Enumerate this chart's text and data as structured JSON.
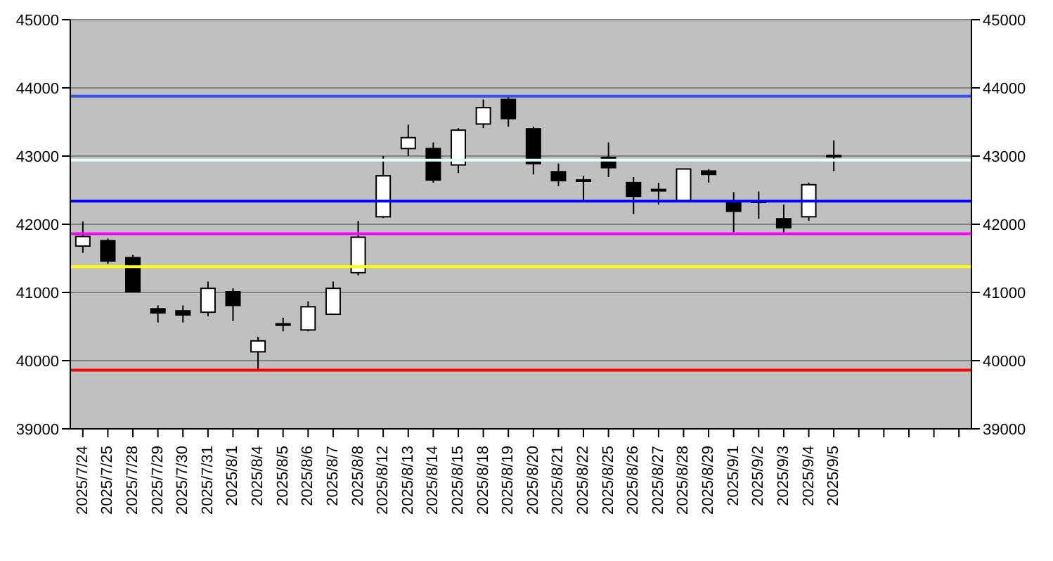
{
  "chart_data": {
    "type": "candlestick",
    "categories": [
      "2025/7/24",
      "2025/7/25",
      "2025/7/28",
      "2025/7/29",
      "2025/7/30",
      "2025/7/31",
      "2025/8/1",
      "2025/8/4",
      "2025/8/5",
      "2025/8/6",
      "2025/8/7",
      "2025/8/8",
      "2025/8/12",
      "2025/8/13",
      "2025/8/14",
      "2025/8/15",
      "2025/8/18",
      "2025/8/19",
      "2025/8/20",
      "2025/8/21",
      "2025/8/22",
      "2025/8/25",
      "2025/8/26",
      "2025/8/27",
      "2025/8/28",
      "2025/8/29",
      "2025/9/1",
      "2025/9/2",
      "2025/9/3",
      "2025/9/4",
      "2025/9/5",
      null,
      null,
      null,
      null,
      null
    ],
    "ohlc": [
      [
        41680,
        42040,
        41580,
        41820
      ],
      [
        41760,
        41790,
        41420,
        41460
      ],
      [
        41510,
        41550,
        41010,
        41010
      ],
      [
        40760,
        40810,
        40560,
        40700
      ],
      [
        40730,
        40810,
        40560,
        40670
      ],
      [
        40710,
        41160,
        40650,
        41060
      ],
      [
        41010,
        41060,
        40580,
        40810
      ],
      [
        40130,
        40350,
        39880,
        40290
      ],
      [
        40520,
        40630,
        40430,
        40540
      ],
      [
        40450,
        40870,
        40430,
        40790
      ],
      [
        40680,
        41160,
        40680,
        41060
      ],
      [
        41290,
        42050,
        41250,
        41810
      ],
      [
        42110,
        43000,
        42090,
        42710
      ],
      [
        43110,
        43460,
        43000,
        43270
      ],
      [
        43110,
        43200,
        42610,
        42650
      ],
      [
        42870,
        43410,
        42750,
        43380
      ],
      [
        43470,
        43830,
        43410,
        43710
      ],
      [
        43830,
        43880,
        43430,
        43550
      ],
      [
        43400,
        43430,
        42730,
        42890
      ],
      [
        42770,
        42890,
        42560,
        42640
      ],
      [
        42630,
        42710,
        42360,
        42650
      ],
      [
        42980,
        43200,
        42690,
        42830
      ],
      [
        42610,
        42690,
        42150,
        42410
      ],
      [
        42490,
        42610,
        42290,
        42510
      ],
      [
        42330,
        42810,
        42330,
        42810
      ],
      [
        42780,
        42810,
        42610,
        42730
      ],
      [
        42310,
        42470,
        41880,
        42190
      ],
      [
        42320,
        42480,
        42080,
        42340
      ],
      [
        42080,
        42290,
        41880,
        41950
      ],
      [
        42110,
        42610,
        42050,
        42580
      ],
      [
        42990,
        43230,
        42780,
        43010
      ],
      null,
      null,
      null,
      null,
      null
    ],
    "ylim": [
      39000,
      45000
    ],
    "yticks": [
      39000,
      40000,
      41000,
      42000,
      43000,
      44000,
      45000
    ],
    "y2lim": [
      39000,
      45000
    ],
    "y2ticks": [
      39000,
      40000,
      41000,
      42000,
      43000,
      44000,
      45000
    ],
    "grid": "y",
    "legend": false,
    "ref_lines": [
      {
        "axis": "y",
        "value": 43880,
        "color": "#3050f0"
      },
      {
        "axis": "y",
        "value": 42940,
        "color": "#e0ffff"
      },
      {
        "axis": "y",
        "value": 42340,
        "color": "#0000ff"
      },
      {
        "axis": "y",
        "value": 41860,
        "color": "#ff00ff"
      },
      {
        "axis": "y",
        "value": 41380,
        "color": "#ffff00"
      },
      {
        "axis": "y",
        "value": 39860,
        "color": "#ff0000"
      }
    ]
  }
}
